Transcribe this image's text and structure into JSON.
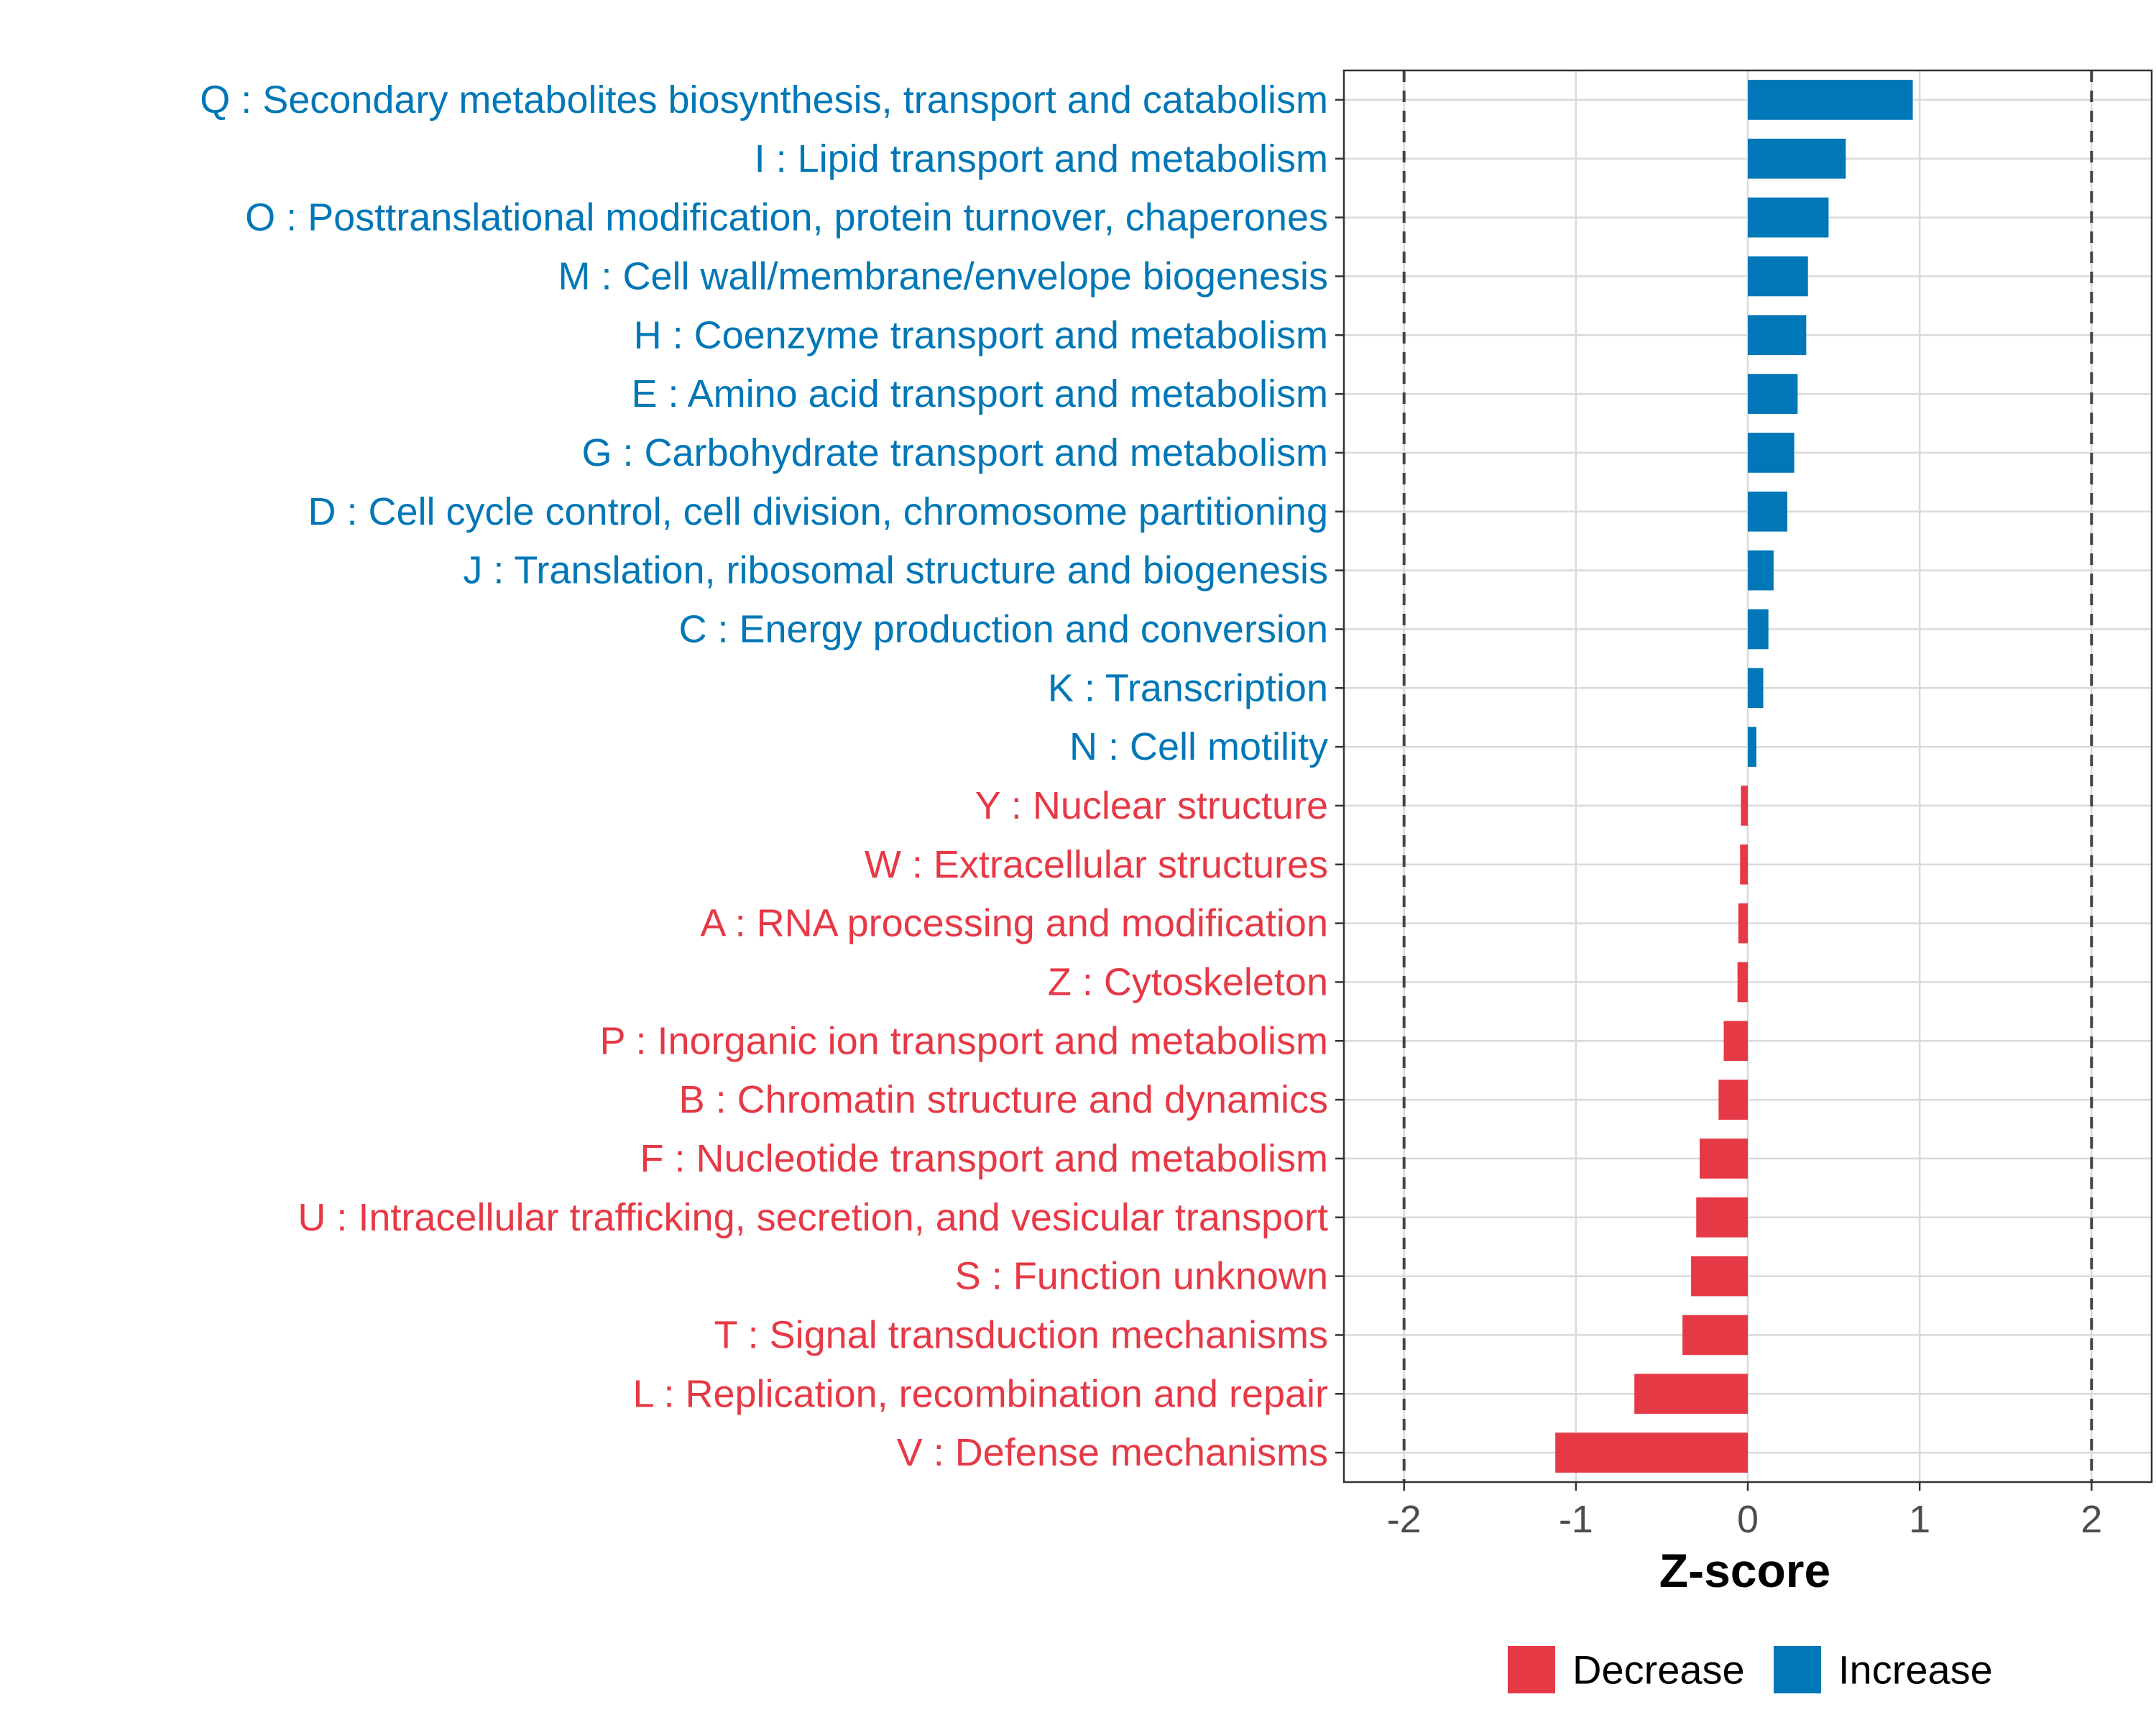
{
  "chart_data": {
    "type": "bar",
    "orientation": "horizontal",
    "xlabel": "Z-score",
    "xlim": [
      -2.35,
      2.35
    ],
    "xticks": [
      -2,
      -1,
      0,
      1,
      2
    ],
    "xtick_labels": [
      "-2",
      "-1",
      "0",
      "1",
      "2"
    ],
    "reference_lines": [
      -2,
      2
    ],
    "grid": true,
    "legend_position": "bottom",
    "colors": {
      "Decrease": "#E63946",
      "Increase": "#0077B6"
    },
    "legend": [
      {
        "name": "Decrease",
        "color": "#E63946"
      },
      {
        "name": "Increase",
        "color": "#0077B6"
      }
    ],
    "categories": [
      "Q : Secondary metabolites biosynthesis, transport and catabolism",
      "I : Lipid transport and metabolism",
      "O : Posttranslational modification, protein turnover, chaperones",
      "M : Cell wall/membrane/envelope biogenesis",
      "H : Coenzyme transport and metabolism",
      "E : Amino acid transport and metabolism",
      "G : Carbohydrate transport and metabolism",
      "D : Cell cycle control, cell division, chromosome partitioning",
      "J : Translation, ribosomal structure and biogenesis",
      "C : Energy production and conversion",
      "K : Transcription",
      "N : Cell motility",
      "Y : Nuclear structure",
      "W : Extracellular structures",
      "A : RNA processing and modification",
      "Z : Cytoskeleton",
      "P : Inorganic ion transport and metabolism",
      "B : Chromatin structure and dynamics",
      "F : Nucleotide transport and metabolism",
      "U : Intracellular trafficking, secretion, and vesicular transport",
      "S : Function unknown",
      "T : Signal transduction mechanisms",
      "L : Replication, recombination and repair",
      "V : Defense mechanisms"
    ],
    "values": [
      0.96,
      0.57,
      0.47,
      0.35,
      0.34,
      0.29,
      0.27,
      0.23,
      0.15,
      0.12,
      0.09,
      0.05,
      -0.04,
      -0.045,
      -0.055,
      -0.06,
      -0.14,
      -0.17,
      -0.28,
      -0.3,
      -0.33,
      -0.38,
      -0.66,
      -1.12
    ],
    "groups": [
      "Increase",
      "Increase",
      "Increase",
      "Increase",
      "Increase",
      "Increase",
      "Increase",
      "Increase",
      "Increase",
      "Increase",
      "Increase",
      "Increase",
      "Decrease",
      "Decrease",
      "Decrease",
      "Decrease",
      "Decrease",
      "Decrease",
      "Decrease",
      "Decrease",
      "Decrease",
      "Decrease",
      "Decrease",
      "Decrease"
    ]
  }
}
